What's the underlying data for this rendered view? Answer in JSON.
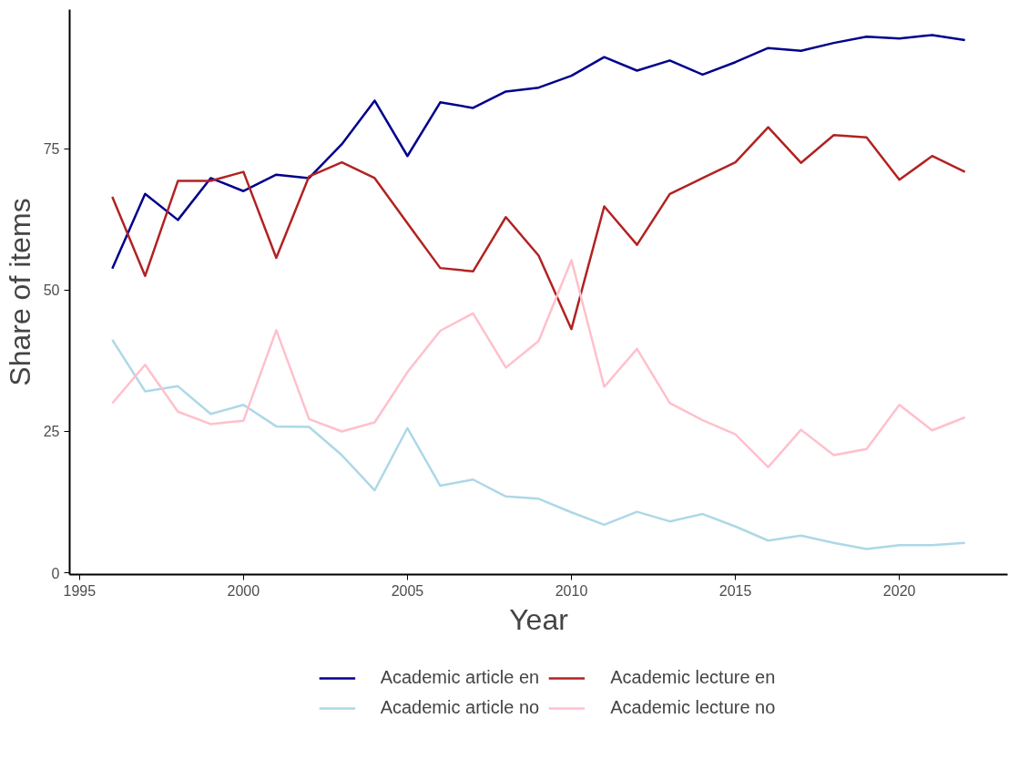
{
  "chart_data": {
    "type": "line",
    "xlabel": "Year",
    "ylabel": "Share of items",
    "x": [
      1996,
      1997,
      1998,
      1999,
      2000,
      2001,
      2002,
      2003,
      2004,
      2005,
      2006,
      2007,
      2008,
      2009,
      2010,
      2011,
      2012,
      2013,
      2014,
      2015,
      2016,
      2017,
      2018,
      2019,
      2020,
      2021,
      2022
    ],
    "series": [
      {
        "name": "Academic article en",
        "color": "#00008b",
        "values": [
          53.8,
          67.0,
          62.4,
          69.8,
          67.5,
          70.4,
          69.8,
          75.8,
          83.5,
          73.7,
          83.2,
          82.2,
          85.1,
          85.8,
          87.9,
          91.2,
          88.8,
          90.6,
          88.1,
          90.3,
          92.8,
          92.3,
          93.7,
          94.8,
          94.5,
          95.1,
          94.2
        ]
      },
      {
        "name": "Academic lecture en",
        "color": "#b22222",
        "values": [
          66.5,
          52.5,
          69.3,
          69.3,
          70.9,
          55.7,
          70.1,
          72.6,
          69.8,
          61.8,
          53.9,
          53.3,
          62.9,
          56.1,
          43.1,
          64.8,
          58.0,
          67.0,
          69.8,
          72.6,
          78.8,
          72.5,
          77.4,
          77.0,
          69.5,
          73.7,
          70.9
        ]
      },
      {
        "name": "Academic article no",
        "color": "#add8e6",
        "values": [
          41.2,
          32.1,
          33.0,
          28.1,
          29.7,
          25.9,
          25.8,
          20.8,
          14.6,
          25.6,
          15.4,
          16.5,
          13.5,
          13.1,
          10.7,
          8.5,
          10.8,
          9.1,
          10.4,
          8.2,
          5.7,
          6.6,
          5.3,
          4.2,
          4.9,
          4.9,
          5.3
        ]
      },
      {
        "name": "Academic lecture no",
        "color": "#ffc0cb",
        "values": [
          30.0,
          36.8,
          28.5,
          26.3,
          26.9,
          42.9,
          27.2,
          25.0,
          26.6,
          35.5,
          42.8,
          45.9,
          36.3,
          41.0,
          55.3,
          32.9,
          39.6,
          30.0,
          27.0,
          24.5,
          18.7,
          25.3,
          20.8,
          21.9,
          29.7,
          25.2,
          27.5
        ]
      }
    ],
    "xlim": [
      1994.7,
      2023.3
    ],
    "ylim": [
      -0.3,
      99.6
    ],
    "xticks": [
      1995,
      2000,
      2005,
      2010,
      2015,
      2020
    ],
    "yticks": [
      0,
      25,
      50,
      75
    ],
    "grid": false,
    "legend": "bottom",
    "line_style": "solid"
  }
}
